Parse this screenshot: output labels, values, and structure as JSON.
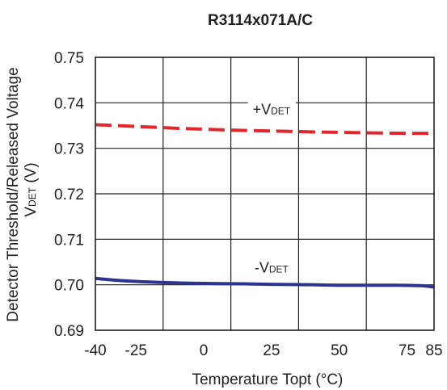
{
  "chart_data": {
    "type": "line",
    "title": "R3114x071A/C",
    "xlabel": "Temperature Topt (°C)",
    "ylabel_line1": "Detector Threshold/Released Voltage",
    "ylabel_line2_main": "V",
    "ylabel_line2_sub": "DET",
    "ylabel_line2_unit": " (V)",
    "xlim": [
      -40,
      85
    ],
    "ylim": [
      0.69,
      0.75
    ],
    "x_ticks": [
      -40,
      -25,
      0,
      25,
      50,
      75,
      85
    ],
    "x_tick_labels": [
      "-40",
      "-25",
      "0",
      "25",
      "50",
      "75",
      "85"
    ],
    "x_grid": [
      -40,
      -15,
      10,
      35,
      60,
      85
    ],
    "y_ticks": [
      0.69,
      0.7,
      0.71,
      0.72,
      0.73,
      0.74,
      0.75
    ],
    "y_tick_labels": [
      "0.69",
      "0.70",
      "0.71",
      "0.72",
      "0.73",
      "0.74",
      "0.75"
    ],
    "grid": true,
    "series": [
      {
        "name": "+VDET",
        "label_prefix": "+V",
        "label_sub": "DET",
        "style": "dashed",
        "color": "#e3262b",
        "label_at": [
          25,
          0.7375
        ],
        "x": [
          -40,
          -25,
          -10,
          0,
          10,
          25,
          40,
          50,
          60,
          75,
          85
        ],
        "y": [
          0.7352,
          0.7348,
          0.7344,
          0.7342,
          0.734,
          0.7338,
          0.7336,
          0.7335,
          0.7334,
          0.7333,
          0.7333
        ]
      },
      {
        "name": "-VDET",
        "label_prefix": "-V",
        "label_sub": "DET",
        "style": "solid",
        "color": "#2b3590",
        "label_at": [
          25,
          0.7027
        ],
        "x": [
          -40,
          -30,
          -15,
          0,
          15,
          25,
          40,
          50,
          60,
          70,
          80,
          85
        ],
        "y": [
          0.7014,
          0.7009,
          0.7005,
          0.7003,
          0.7002,
          0.7001,
          0.7,
          0.6999,
          0.6999,
          0.6999,
          0.6998,
          0.6995
        ]
      }
    ]
  }
}
